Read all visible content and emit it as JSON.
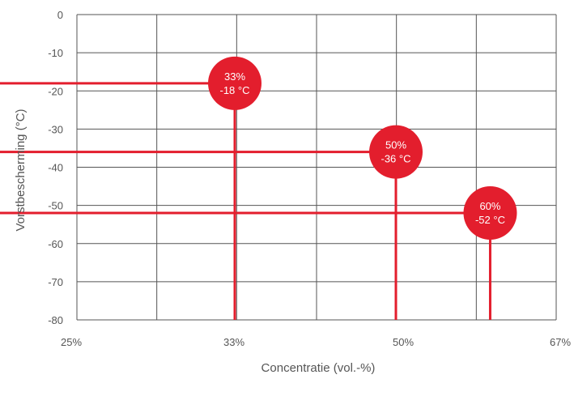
{
  "chart_data": {
    "type": "scatter",
    "xlabel": "Concentratie (vol.-%)",
    "ylabel": "Vorstbescherming (°C)",
    "x_ticks": [
      "25%",
      "33%",
      "50%",
      "67%"
    ],
    "y_ticks": [
      "0",
      "-10",
      "-20",
      "-30",
      "-40",
      "-50",
      "-60",
      "-70",
      "-80"
    ],
    "ylim": [
      -80,
      0
    ],
    "grid": true,
    "points": [
      {
        "concentration": "33%",
        "temperature_c": -18,
        "label_line1": "33%",
        "label_line2": "-18 °C"
      },
      {
        "concentration": "50%",
        "temperature_c": -36,
        "label_line1": "50%",
        "label_line2": "-36 °C"
      },
      {
        "concentration": "60%",
        "temperature_c": -52,
        "label_line1": "60%",
        "label_line2": "-52 °C"
      }
    ],
    "colors": {
      "marker": "#e31e2d",
      "grid": "#555555",
      "text": "#555555"
    }
  }
}
